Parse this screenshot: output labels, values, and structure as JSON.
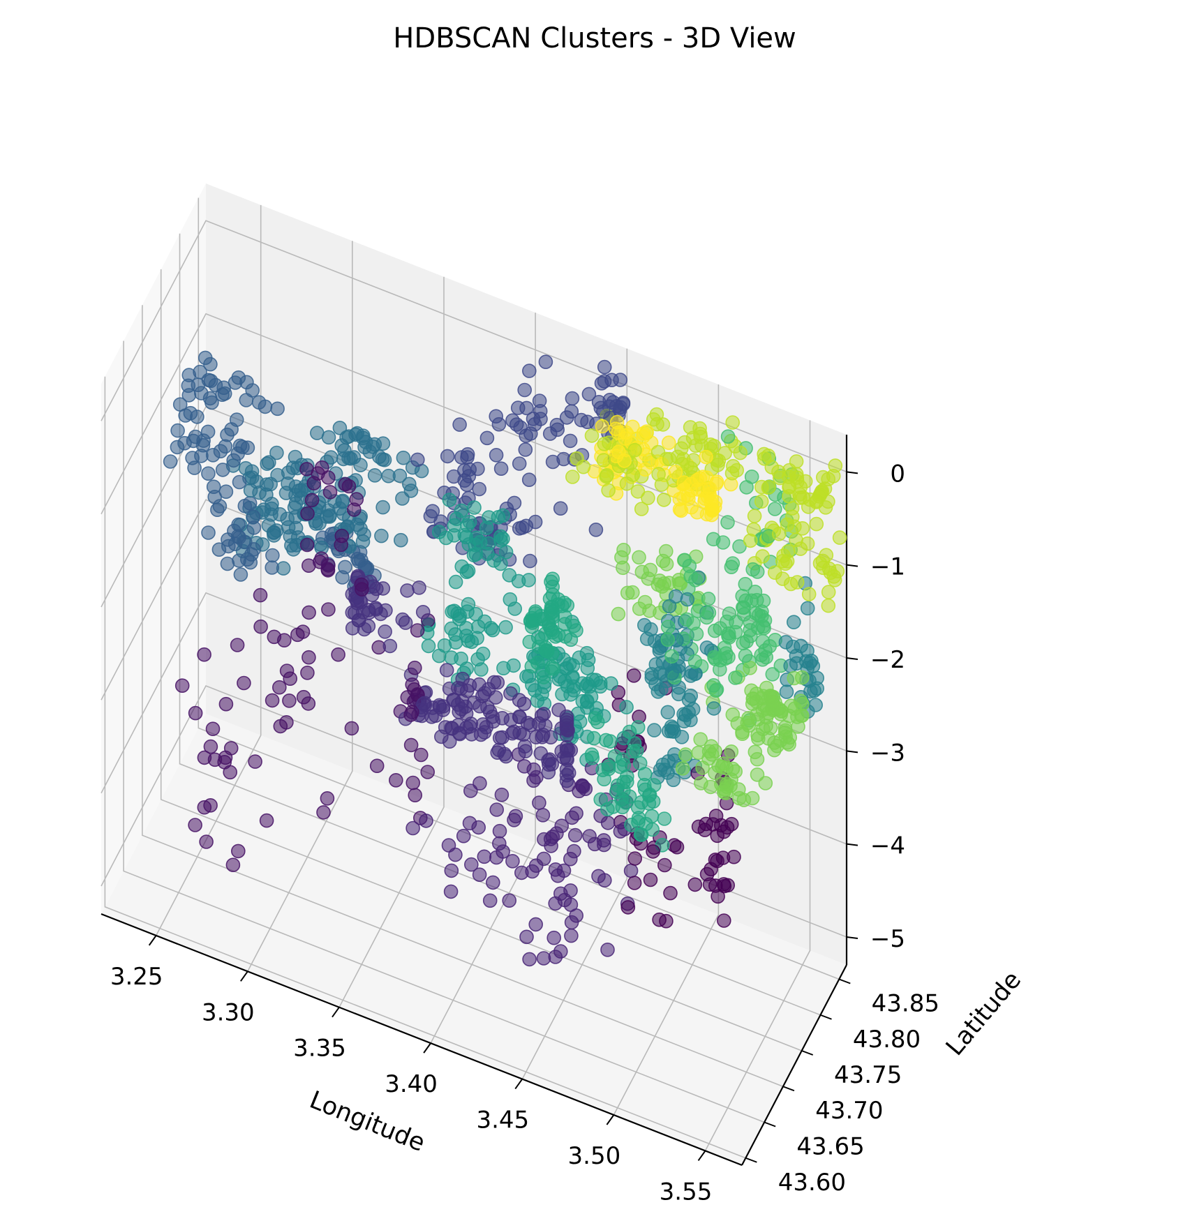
{
  "chart_data": {
    "type": "scatter",
    "projection": "3d",
    "title": "HDBSCAN Clusters - 3D View",
    "xlabel": "Longitude",
    "ylabel": "Latitude",
    "zlabel": "",
    "xlim": [
      3.22,
      3.57
    ],
    "ylim": [
      43.59,
      43.87
    ],
    "zlim": [
      -5.3,
      0.4
    ],
    "xticks": [
      "3.25",
      "3.30",
      "3.35",
      "3.40",
      "3.45",
      "3.50",
      "3.55"
    ],
    "yticks": [
      "43.60",
      "43.65",
      "43.70",
      "43.75",
      "43.80",
      "43.85"
    ],
    "zticks": [
      "−5",
      "−4",
      "−3",
      "−2",
      "−1",
      "0"
    ],
    "colormap": "viridis",
    "marker_alpha": 0.55,
    "grid": true,
    "pane_color": "#f2f2f2",
    "clusters": [
      {
        "cluster": 0,
        "color": "#440154",
        "n": 60,
        "x": [
          3.46,
          3.53
        ],
        "y": [
          43.62,
          43.8
        ],
        "z": [
          -4.8,
          -2.2
        ]
      },
      {
        "cluster": 1,
        "color": "#471365",
        "n": 90,
        "x": [
          3.25,
          3.36
        ],
        "y": [
          43.66,
          43.78
        ],
        "z": [
          -5.0,
          -0.3
        ]
      },
      {
        "cluster": 2,
        "color": "#482576",
        "n": 90,
        "x": [
          3.36,
          3.5
        ],
        "y": [
          43.6,
          43.7
        ],
        "z": [
          -5.1,
          -2.6
        ]
      },
      {
        "cluster": 3,
        "color": "#46337f",
        "n": 160,
        "x": [
          3.33,
          3.46
        ],
        "y": [
          43.66,
          43.76
        ],
        "z": [
          -3.4,
          -1.9
        ]
      },
      {
        "cluster": 4,
        "color": "#3e4989",
        "n": 120,
        "x": [
          3.32,
          3.45
        ],
        "y": [
          43.77,
          43.86
        ],
        "z": [
          -2.2,
          0.2
        ]
      },
      {
        "cluster": 5,
        "color": "#355f8d",
        "n": 110,
        "x": [
          3.23,
          3.33
        ],
        "y": [
          43.7,
          43.82
        ],
        "z": [
          -2.3,
          -0.8
        ]
      },
      {
        "cluster": 6,
        "color": "#2c718e",
        "n": 150,
        "x": [
          3.26,
          3.38
        ],
        "y": [
          43.7,
          43.8
        ],
        "z": [
          -2.5,
          -1.0
        ]
      },
      {
        "cluster": 7,
        "color": "#26828e",
        "n": 110,
        "x": [
          3.49,
          3.56
        ],
        "y": [
          43.72,
          43.84
        ],
        "z": [
          -3.0,
          -0.2
        ]
      },
      {
        "cluster": 8,
        "color": "#1f9a8a",
        "n": 150,
        "x": [
          3.36,
          3.48
        ],
        "y": [
          43.68,
          43.78
        ],
        "z": [
          -2.8,
          -0.9
        ]
      },
      {
        "cluster": 9,
        "color": "#22a884",
        "n": 110,
        "x": [
          3.44,
          3.52
        ],
        "y": [
          43.64,
          43.72
        ],
        "z": [
          -2.9,
          -1.0
        ]
      },
      {
        "cluster": 10,
        "color": "#44bf70",
        "n": 110,
        "x": [
          3.44,
          3.55
        ],
        "y": [
          43.7,
          43.86
        ],
        "z": [
          -2.6,
          0.1
        ]
      },
      {
        "cluster": 11,
        "color": "#7ad151",
        "n": 140,
        "x": [
          3.46,
          3.56
        ],
        "y": [
          43.68,
          43.8
        ],
        "z": [
          -2.2,
          -0.6
        ]
      },
      {
        "cluster": 12,
        "color": "#bddf26",
        "n": 160,
        "x": [
          3.43,
          3.57
        ],
        "y": [
          43.76,
          43.87
        ],
        "z": [
          -1.1,
          0.3
        ]
      },
      {
        "cluster": 13,
        "color": "#fde725",
        "n": 90,
        "x": [
          3.43,
          3.51
        ],
        "y": [
          43.8,
          43.87
        ],
        "z": [
          -0.9,
          0.3
        ]
      }
    ]
  }
}
